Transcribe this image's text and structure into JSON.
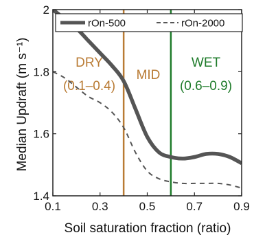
{
  "chart_data": {
    "type": "line",
    "title": "",
    "xlabel": "Soil saturation fraction (ratio)",
    "ylabel": "Median Updraft (m s⁻¹)",
    "xlim": [
      0.1,
      0.9
    ],
    "ylim": [
      1.4,
      2.0
    ],
    "xticks": [
      0.1,
      0.3,
      0.5,
      0.7,
      0.9
    ],
    "xtick_labels": [
      "0.1",
      "0.3",
      "0.5",
      "0.7",
      "0.9"
    ],
    "yticks": [
      1.4,
      1.6,
      1.8,
      2.0
    ],
    "ytick_labels": [
      "1.4",
      "1.6",
      "1.8",
      "2"
    ],
    "grid": false,
    "legend_position": "top",
    "series": [
      {
        "name": "rOn-500",
        "color": "#555555",
        "style": "solid",
        "x": [
          0.1,
          0.15,
          0.2,
          0.25,
          0.3,
          0.35,
          0.4,
          0.45,
          0.5,
          0.55,
          0.6,
          0.65,
          0.7,
          0.75,
          0.8,
          0.85,
          0.9
        ],
        "y": [
          2.0,
          1.97,
          1.94,
          1.9,
          1.86,
          1.82,
          1.77,
          1.68,
          1.59,
          1.54,
          1.525,
          1.52,
          1.525,
          1.535,
          1.535,
          1.525,
          1.505
        ]
      },
      {
        "name": "rOn-2000",
        "color": "#555555",
        "style": "dashed",
        "x": [
          0.1,
          0.15,
          0.2,
          0.25,
          0.3,
          0.35,
          0.4,
          0.45,
          0.5,
          0.55,
          0.6,
          0.65,
          0.7,
          0.75,
          0.8,
          0.85,
          0.9
        ],
        "y": [
          1.8,
          1.78,
          1.75,
          1.72,
          1.7,
          1.67,
          1.62,
          1.54,
          1.48,
          1.455,
          1.445,
          1.44,
          1.44,
          1.44,
          1.44,
          1.435,
          1.425
        ]
      }
    ],
    "vertical_lines": [
      {
        "x": 0.4,
        "color": "#b97b34"
      },
      {
        "x": 0.6,
        "color": "#1e7b2a"
      }
    ],
    "annotations": [
      {
        "name": "dry",
        "lines": [
          "DRY",
          "(0.1–0.4)"
        ],
        "color": "#b97b34"
      },
      {
        "name": "mid",
        "lines": [
          "MID"
        ],
        "color": "#b97b34"
      },
      {
        "name": "wet",
        "lines": [
          "WET",
          "(0.6–0.9)"
        ],
        "color": "#1e7b2a"
      }
    ]
  }
}
